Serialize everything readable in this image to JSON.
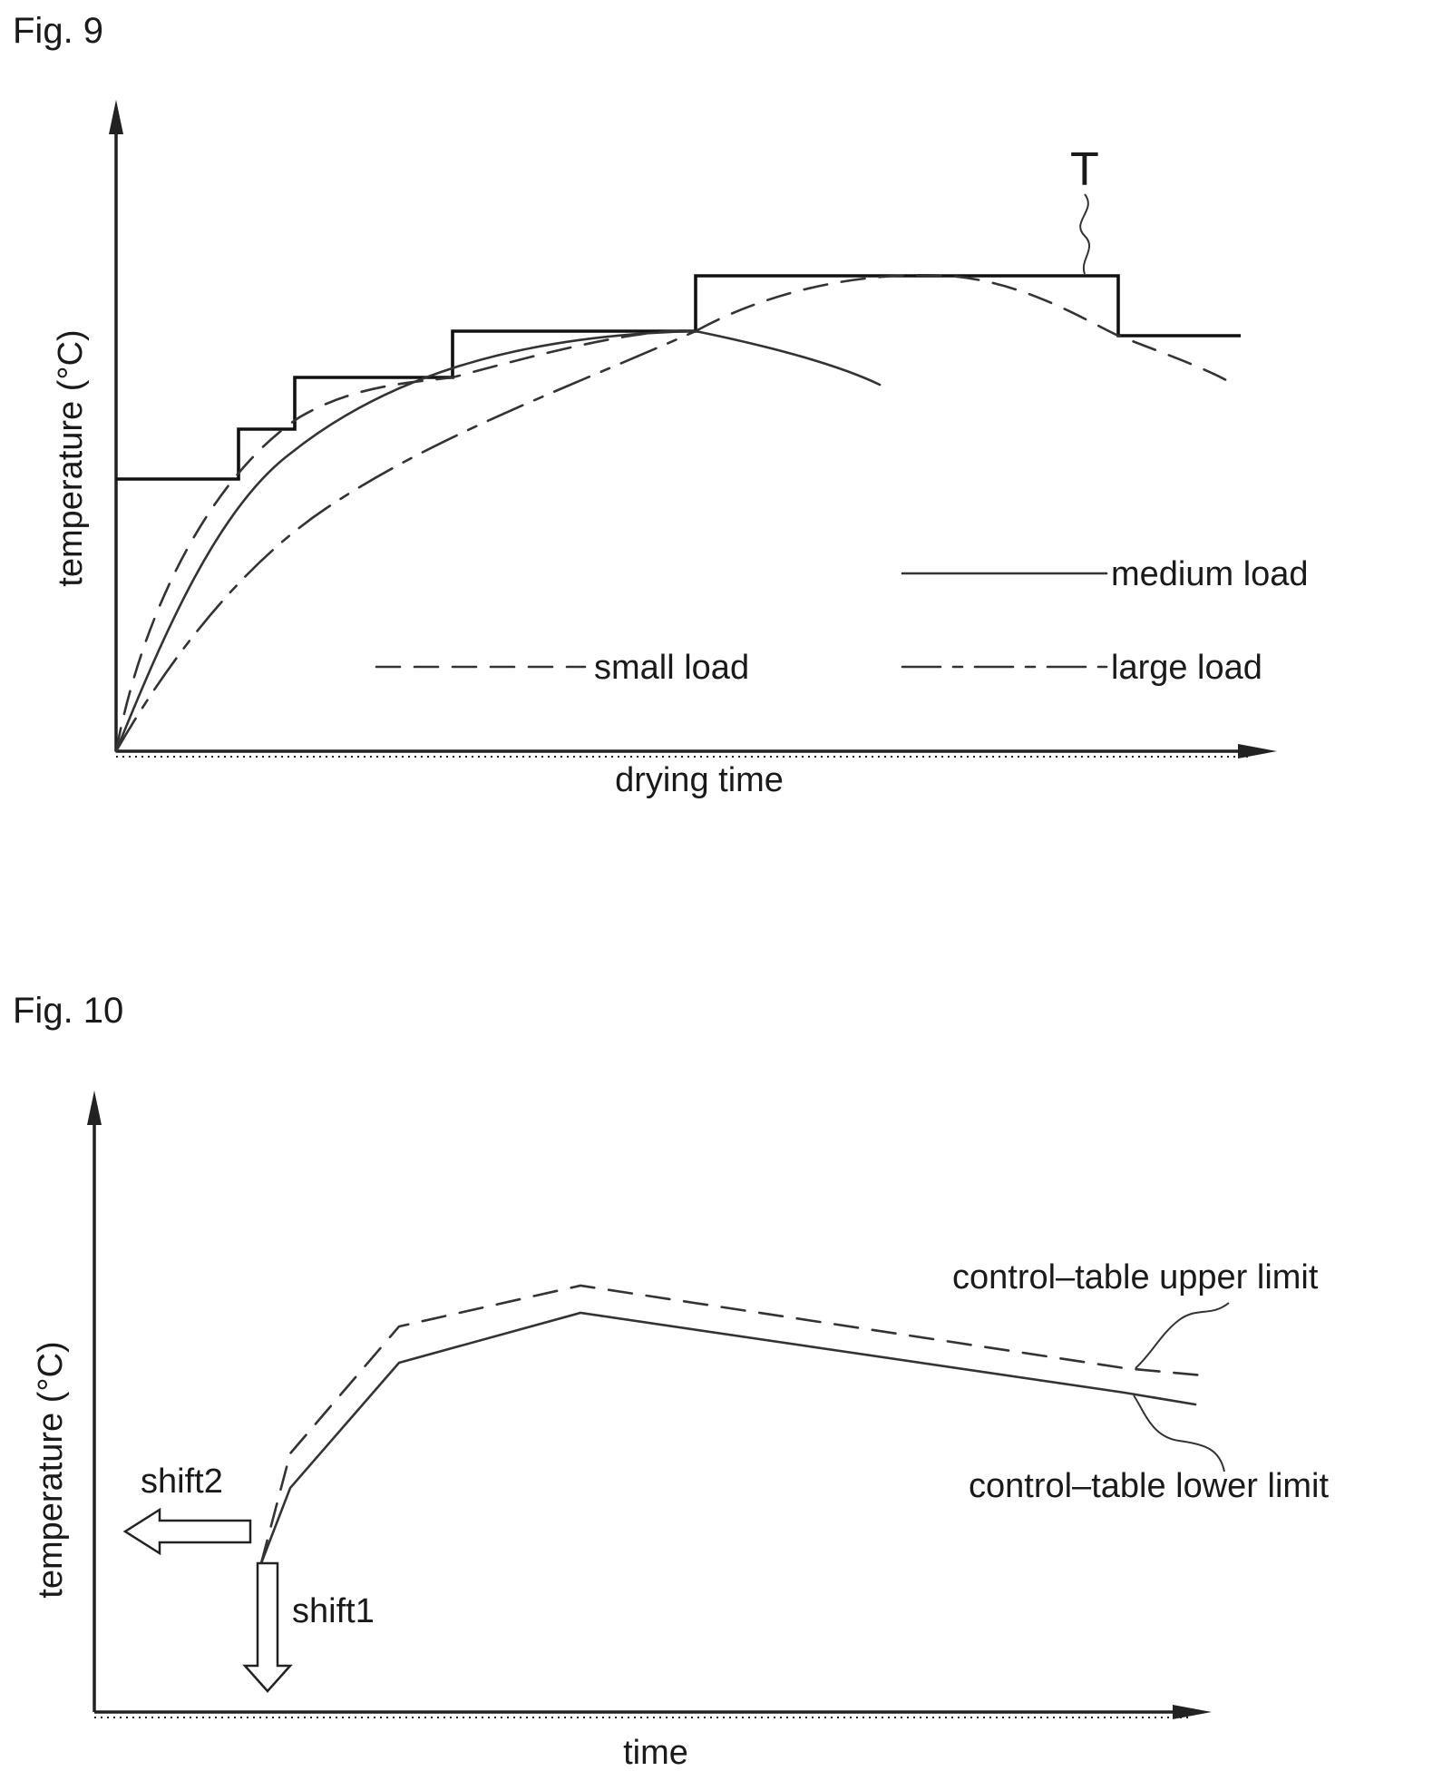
{
  "figure9": {
    "label": "Fig. 9",
    "y_axis_label": "temperature (°C)",
    "x_axis_label": "drying time",
    "step_line_label": "T",
    "legend": {
      "medium": "medium load",
      "small": "small load",
      "large": "large load"
    }
  },
  "figure10": {
    "label": "Fig. 10",
    "y_axis_label": "temperature (°C)",
    "x_axis_label": "time",
    "upper_limit_label": "control–table upper limit",
    "lower_limit_label": "control–table lower limit",
    "shift1_label": "shift1",
    "shift2_label": "shift2"
  }
}
